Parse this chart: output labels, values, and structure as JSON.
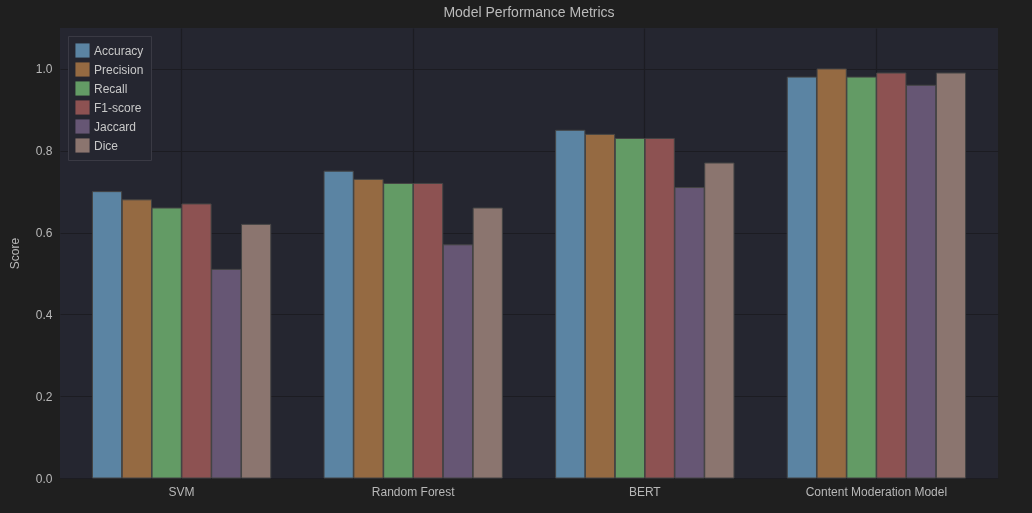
{
  "chart_data": {
    "type": "bar",
    "title": "Model Performance Metrics",
    "ylabel": "Score",
    "categories": [
      "SVM",
      "Random Forest",
      "BERT",
      "Content Moderation Model"
    ],
    "series": [
      {
        "name": "Accuracy",
        "color": "#5b84a3",
        "values": [
          0.7,
          0.75,
          0.85,
          0.98
        ]
      },
      {
        "name": "Precision",
        "color": "#956a42",
        "values": [
          0.68,
          0.73,
          0.84,
          1.0
        ]
      },
      {
        "name": "Recall",
        "color": "#639b65",
        "values": [
          0.66,
          0.72,
          0.83,
          0.98
        ]
      },
      {
        "name": "F1-score",
        "color": "#8d5252",
        "values": [
          0.67,
          0.72,
          0.83,
          0.99
        ]
      },
      {
        "name": "Jaccard",
        "color": "#665674",
        "values": [
          0.51,
          0.57,
          0.71,
          0.96
        ]
      },
      {
        "name": "Dice",
        "color": "#8b756f",
        "values": [
          0.62,
          0.66,
          0.77,
          0.99
        ]
      }
    ],
    "ylim": [
      0,
      1.1
    ],
    "yticks": [
      {
        "value": 0,
        "label": "0.0"
      },
      0.2,
      0.4,
      0.6,
      0.8,
      {
        "value": 1,
        "label": "1.0"
      }
    ],
    "grid": true,
    "legend": "top left"
  }
}
